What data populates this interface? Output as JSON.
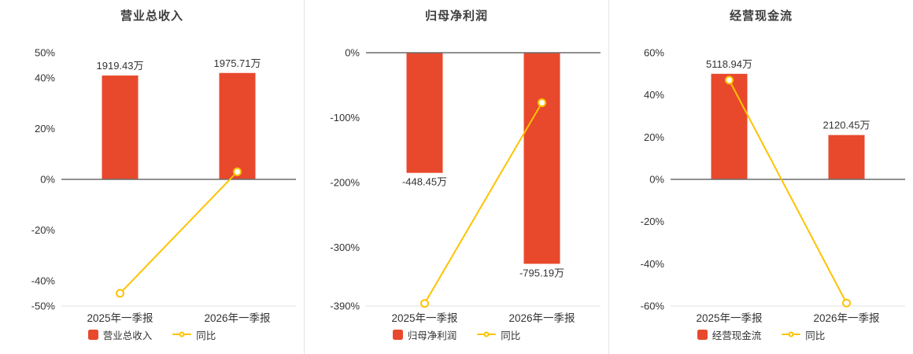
{
  "colors": {
    "bar": "#e8492c",
    "line": "#fdc300",
    "text": "#333333",
    "axis_zero": "#6b6b6b",
    "axis_bottom": "#e0e0e0",
    "divider": "#e4e4e4",
    "background": "#ffffff"
  },
  "chart_data": [
    {
      "type": "bar",
      "title": "营业总收入",
      "categories": [
        "2025年一季报",
        "2026年一季报"
      ],
      "bar_series": {
        "name": "营业总收入",
        "labels": [
          "1919.43万",
          "1975.71万"
        ],
        "display_pct": [
          41,
          42
        ]
      },
      "line_series": {
        "name": "同比",
        "values_pct": [
          -45,
          3
        ]
      },
      "ylim": [
        -50,
        50
      ],
      "yticks": [
        50,
        40,
        20,
        0,
        -20,
        -40,
        -50
      ],
      "y_unit": "%",
      "grid": false,
      "legend_position": "bottom"
    },
    {
      "type": "bar",
      "title": "归母净利润",
      "categories": [
        "2025年一季报",
        "2026年一季报"
      ],
      "bar_series": {
        "name": "归母净利润",
        "labels": [
          "-448.45万",
          "-795.19万"
        ],
        "display_pct": [
          -185,
          -325
        ]
      },
      "line_series": {
        "name": "同比",
        "values_pct": [
          -386,
          -77
        ]
      },
      "ylim": [
        -390,
        0
      ],
      "yticks": [
        0,
        -100,
        -200,
        -300,
        -390
      ],
      "y_unit": "%",
      "grid": false,
      "legend_position": "bottom"
    },
    {
      "type": "bar",
      "title": "经营现金流",
      "categories": [
        "2025年一季报",
        "2026年一季报"
      ],
      "bar_series": {
        "name": "经营现金流",
        "labels": [
          "5118.94万",
          "2120.45万"
        ],
        "display_pct": [
          50,
          21
        ]
      },
      "line_series": {
        "name": "同比",
        "values_pct": [
          47,
          -58.6
        ]
      },
      "ylim": [
        -60,
        60
      ],
      "yticks": [
        60,
        40,
        20,
        0,
        -20,
        -40,
        -60
      ],
      "y_unit": "%",
      "grid": false,
      "legend_position": "bottom"
    }
  ]
}
